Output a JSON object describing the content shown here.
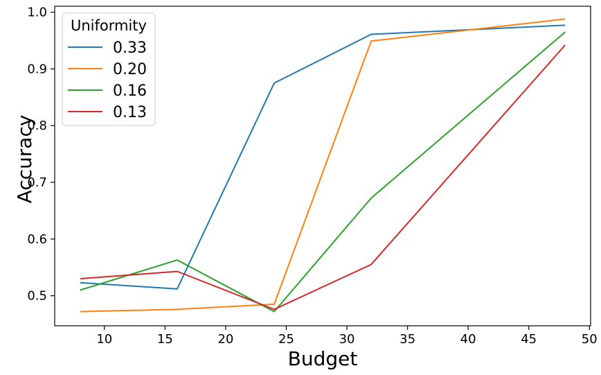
{
  "chart_data": {
    "type": "line",
    "xlabel": "Budget",
    "ylabel": "Accuracy",
    "xlim": [
      5.9,
      50.1
    ],
    "ylim": [
      0.447,
      1.0105
    ],
    "x_ticks": [
      10,
      15,
      20,
      25,
      30,
      35,
      40,
      45,
      50
    ],
    "y_ticks": [
      0.5,
      0.6,
      0.7,
      0.8,
      0.9,
      1.0
    ],
    "x_tick_labels": [
      "10",
      "15",
      "20",
      "25",
      "30",
      "35",
      "40",
      "45",
      "50"
    ],
    "y_tick_labels": [
      "0.5",
      "0.6",
      "0.7",
      "0.8",
      "0.9",
      "1.0"
    ],
    "grid": false,
    "legend": {
      "title": "Uniformity",
      "placement": "top-left"
    },
    "x": [
      8,
      16,
      24,
      32,
      48
    ],
    "series": [
      {
        "name": "0.33",
        "color": "#1f77b4",
        "values": [
          0.523,
          0.512,
          0.875,
          0.961,
          0.977
        ]
      },
      {
        "name": "0.20",
        "color": "#ff7f0e",
        "values": [
          0.472,
          0.476,
          0.485,
          0.949,
          0.988
        ]
      },
      {
        "name": "0.16",
        "color": "#2ca02c",
        "values": [
          0.51,
          0.563,
          0.472,
          0.672,
          0.965
        ]
      },
      {
        "name": "0.13",
        "color": "#d62728",
        "values": [
          0.53,
          0.543,
          0.476,
          0.555,
          0.942
        ]
      }
    ]
  }
}
